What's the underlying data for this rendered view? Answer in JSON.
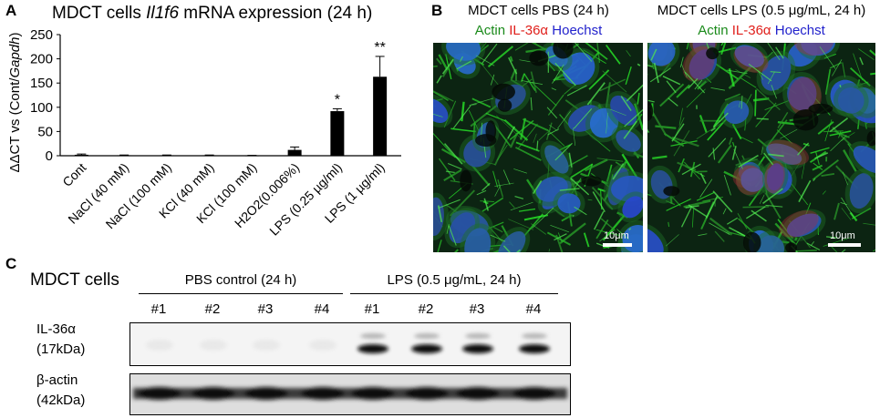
{
  "panels": {
    "a": "A",
    "b": "B",
    "c": "C"
  },
  "chart_title": {
    "prefix": "MDCT cells ",
    "gene": "Il1f6",
    "suffix": " mRNA expression (24 h)"
  },
  "chart_data": {
    "type": "bar",
    "categories": [
      "Cont",
      "NaCl (40 mM)",
      "NaCl (100 mM)",
      "KCl (40 mM)",
      "KCl (100 mM)",
      "H2O2(0.006%)",
      "LPS (0.25 µg/ml)",
      "LPS (1 µg/ml)"
    ],
    "values": [
      2,
      1,
      1,
      1,
      0.5,
      12,
      92,
      163
    ],
    "errors": [
      1.5,
      0.5,
      0.5,
      0.5,
      0.3,
      6,
      5,
      42
    ],
    "significance": [
      "",
      "",
      "",
      "",
      "",
      "",
      "*",
      "**"
    ],
    "ylabel_prefix": "ΔΔCT vs (Cont/",
    "ylabel_italic": "Gapdh",
    "ylabel_suffix": ")",
    "ylim": [
      0,
      250
    ],
    "yticks": [
      0,
      50,
      100,
      150,
      200,
      250
    ],
    "bar_color": "#000000"
  },
  "micrographs": [
    {
      "title": "MDCT cells PBS (24 h)",
      "stains": [
        "Actin",
        "IL-36α",
        "Hoechst"
      ],
      "scale": "10μm"
    },
    {
      "title": "MDCT cells LPS (0.5 μg/mL, 24 h)",
      "stains": [
        "Actin",
        "IL-36α",
        "Hoechst"
      ],
      "scale": "10μm"
    }
  ],
  "western": {
    "cell_label": "MDCT cells",
    "groups": [
      {
        "label": "PBS control (24 h)",
        "lanes": [
          "#1",
          "#2",
          "#3",
          "#4"
        ]
      },
      {
        "label": "LPS (0.5 μg/mL, 24 h)",
        "lanes": [
          "#1",
          "#2",
          "#3",
          "#4"
        ]
      }
    ],
    "blots": [
      {
        "name": "IL-36α",
        "size": "(17kDa)"
      },
      {
        "name": "β-actin",
        "size": "(42kDa)"
      }
    ]
  }
}
